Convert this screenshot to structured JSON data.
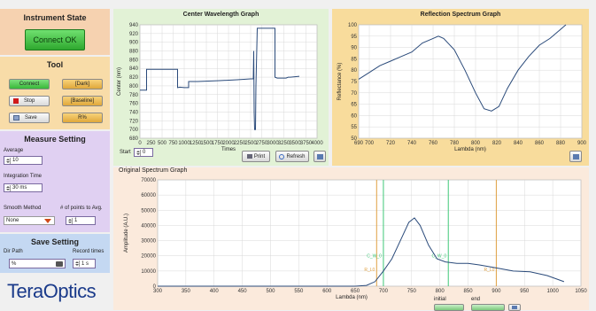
{
  "instrument": {
    "title": "Instrument State",
    "connect_ok": "Connect OK"
  },
  "tool": {
    "title": "Tool",
    "connect": "Connect",
    "dark": "[Dark]",
    "stop": "Stop",
    "baseline": "[Baseline]",
    "save": "Save",
    "rpercent": "R%"
  },
  "measure": {
    "title": "Measure Setting",
    "average_label": "Average",
    "average_value": "10",
    "integration_label": "Integration Time",
    "integration_value": "30 ms",
    "smooth_label": "Smooth Method",
    "points_label": "# of points to Avg.",
    "smooth_value": "None",
    "points_value": "1"
  },
  "save_setting": {
    "title": "Save Setting",
    "dir_label": "Dir Path",
    "record_label": "Record times",
    "dir_value": "%",
    "record_value": "1 s"
  },
  "logo": "TeraOptics",
  "center_graph": {
    "title": "Center Wavelength Graph",
    "ylabel": "Center (nm)",
    "xlabel": "Times",
    "start_label": "Start",
    "start_value": "0",
    "print": "Print",
    "refresh": "Refresh"
  },
  "reflection_graph": {
    "title": "Reflection Spectrum Graph",
    "ylabel": "Reflectance (%)",
    "xlabel": "Lambda (nm)"
  },
  "original_graph": {
    "title": "Original Spectrum Graph",
    "ylabel": "Amplitude (A.U.)",
    "xlabel": "Lambda (nm)",
    "initial_label": "initial",
    "end_label": "end",
    "markers": [
      "R_L0",
      "C_W_0",
      "C_W_0",
      "R_L0"
    ]
  },
  "colors": {
    "accent_green": "#44c244",
    "orange_marker": "#e0a040",
    "green_marker": "#3fc878"
  },
  "chart_data": [
    {
      "type": "line",
      "title": "Center Wavelength Graph",
      "xlabel": "Times",
      "ylabel": "Center (nm)",
      "xlim": [
        0,
        4000
      ],
      "ylim": [
        680,
        940
      ],
      "xticks": [
        "0",
        "250",
        "500",
        "750",
        "1000",
        "1250",
        "1500",
        "1750",
        "2000",
        "2250",
        "2500",
        "2750",
        "3000",
        "3250",
        "3500",
        "3750",
        "4000"
      ],
      "yticks": [
        "680",
        "700",
        "720",
        "740",
        "760",
        "780",
        "800",
        "820",
        "840",
        "860",
        "880",
        "900",
        "920",
        "940"
      ],
      "series": [
        {
          "points": [
            [
              0,
              790
            ],
            [
              100,
              790
            ],
            [
              150,
              790
            ],
            [
              150,
              838
            ],
            [
              180,
              838
            ],
            [
              600,
              838
            ],
            [
              850,
              838
            ],
            [
              850,
              796
            ],
            [
              900,
              797
            ],
            [
              1000,
              796
            ],
            [
              1100,
              796
            ],
            [
              1100,
              810
            ],
            [
              1300,
              810
            ],
            [
              1800,
              812
            ],
            [
              2200,
              814
            ],
            [
              2500,
              816
            ],
            [
              2560,
              816
            ],
            [
              2570,
              880
            ],
            [
              2580,
              740
            ],
            [
              2590,
              700
            ],
            [
              2610,
              700
            ],
            [
              2620,
              800
            ],
            [
              2650,
              932
            ],
            [
              3050,
              932
            ],
            [
              3050,
              820
            ],
            [
              3100,
              818
            ],
            [
              3300,
              818
            ],
            [
              3350,
              820
            ],
            [
              3400,
              820
            ],
            [
              3600,
              822
            ]
          ]
        }
      ]
    },
    {
      "type": "line",
      "title": "Reflection Spectrum Graph",
      "xlabel": "Lambda (nm)",
      "ylabel": "Reflectance (%)",
      "xlim": [
        690,
        900
      ],
      "ylim": [
        50,
        100
      ],
      "xticks": [
        "690",
        "700",
        "720",
        "740",
        "760",
        "780",
        "800",
        "820",
        "840",
        "860",
        "880",
        "900"
      ],
      "yticks": [
        "50",
        "55",
        "60",
        "65",
        "70",
        "75",
        "80",
        "85",
        "90",
        "95",
        "100"
      ],
      "series": [
        {
          "points": [
            [
              690,
              76
            ],
            [
              700,
              79
            ],
            [
              710,
              82
            ],
            [
              720,
              84
            ],
            [
              730,
              86
            ],
            [
              740,
              88
            ],
            [
              750,
              92
            ],
            [
              760,
              94
            ],
            [
              765,
              95
            ],
            [
              770,
              94
            ],
            [
              780,
              89
            ],
            [
              790,
              80
            ],
            [
              800,
              70
            ],
            [
              808,
              63
            ],
            [
              815,
              62
            ],
            [
              822,
              64
            ],
            [
              830,
              72
            ],
            [
              840,
              80
            ],
            [
              850,
              86
            ],
            [
              860,
              91
            ],
            [
              870,
              94
            ],
            [
              880,
              98
            ],
            [
              885,
              100
            ]
          ]
        }
      ]
    },
    {
      "type": "line",
      "title": "Original Spectrum Graph",
      "xlabel": "Lambda (nm)",
      "ylabel": "Amplitude (A.U.)",
      "xlim": [
        300,
        1050
      ],
      "ylim": [
        0,
        70000
      ],
      "xticks": [
        "300",
        "350",
        "400",
        "450",
        "500",
        "550",
        "600",
        "650",
        "700",
        "750",
        "800",
        "850",
        "900",
        "950",
        "1000",
        "1050"
      ],
      "yticks": [
        "0",
        "10000",
        "20000",
        "30000",
        "40000",
        "50000",
        "60000",
        "70000"
      ],
      "series": [
        {
          "points": [
            [
              300,
              0
            ],
            [
              650,
              0
            ],
            [
              670,
              500
            ],
            [
              685,
              3000
            ],
            [
              700,
              10000
            ],
            [
              715,
              18000
            ],
            [
              730,
              30000
            ],
            [
              745,
              42000
            ],
            [
              755,
              45000
            ],
            [
              765,
              40000
            ],
            [
              780,
              27000
            ],
            [
              795,
              18000
            ],
            [
              810,
              16000
            ],
            [
              830,
              15000
            ],
            [
              850,
              15000
            ],
            [
              870,
              14000
            ],
            [
              900,
              12000
            ],
            [
              930,
              10000
            ],
            [
              960,
              9500
            ],
            [
              990,
              7000
            ],
            [
              1020,
              3000
            ]
          ]
        }
      ],
      "vertical_markers": [
        {
          "x": 688,
          "color": "orange"
        },
        {
          "x": 700,
          "color": "green"
        },
        {
          "x": 815,
          "color": "green"
        },
        {
          "x": 900,
          "color": "orange"
        }
      ]
    }
  ]
}
